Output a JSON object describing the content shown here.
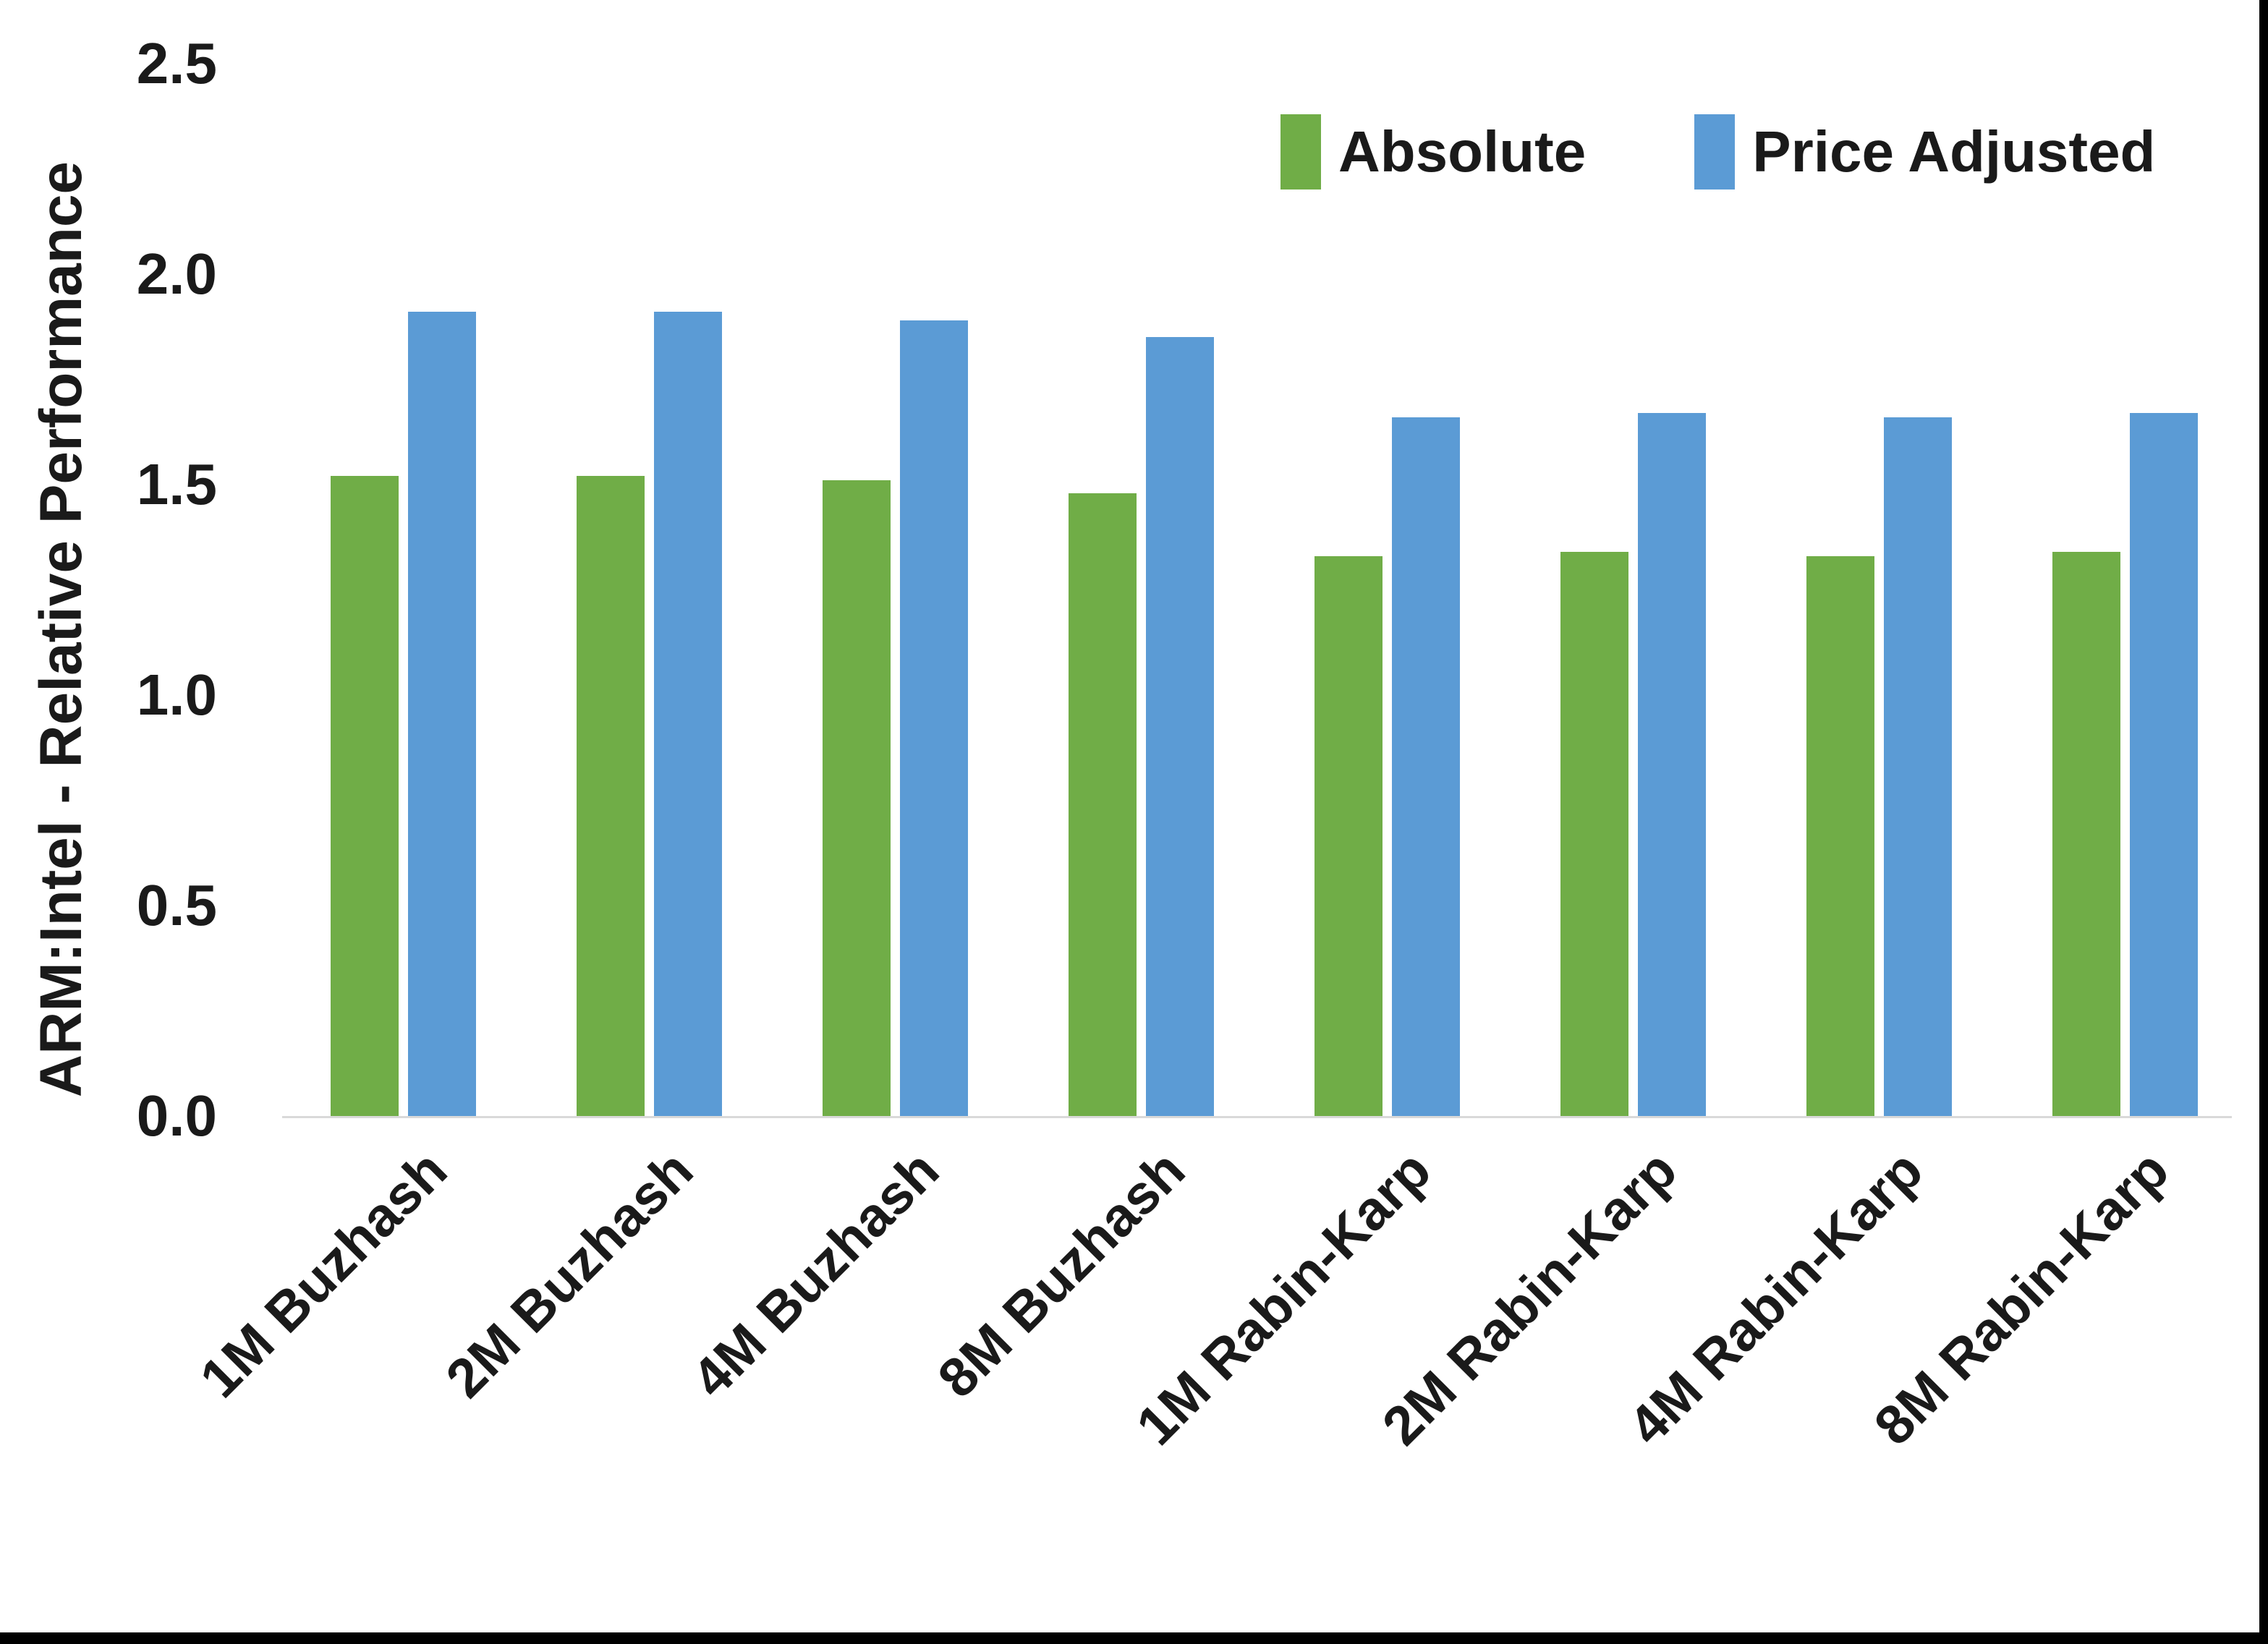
{
  "chart_data": {
    "type": "bar",
    "title": "",
    "xlabel": "",
    "ylabel": "ARM:Intel - Relative Performance",
    "categories": [
      "1M Buzhash",
      "2M Buzhash",
      "4M Buzhash",
      "8M Buzhash",
      "1M Rabin-Karp",
      "2M Rabin-Karp",
      "4M Rabin-Karp",
      "8M Rabin-Karp"
    ],
    "series": [
      {
        "name": "Absolute",
        "color": "#70AD47",
        "values": [
          1.52,
          1.52,
          1.51,
          1.48,
          1.33,
          1.34,
          1.33,
          1.34
        ]
      },
      {
        "name": "Price Adjusted",
        "color": "#5B9BD5",
        "values": [
          1.91,
          1.91,
          1.89,
          1.85,
          1.66,
          1.67,
          1.66,
          1.67
        ]
      }
    ],
    "ylim": [
      0,
      2.5
    ],
    "ytick_step": 0.5,
    "yticks": [
      "0.0",
      "0.5",
      "1.0",
      "1.5",
      "2.0",
      "2.5"
    ],
    "grid": false,
    "legend_position": "top-right",
    "axis_line_color": "#d9d9d9",
    "x_label_rotation_deg": -45
  },
  "page": {
    "border_color": "#000000"
  }
}
